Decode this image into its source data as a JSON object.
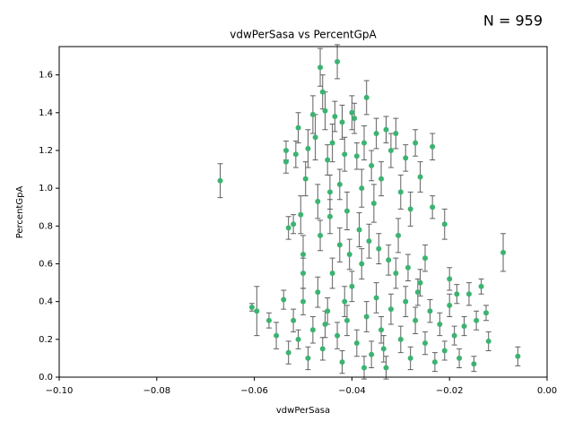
{
  "chart_data": {
    "type": "scatter",
    "title": "vdwPerSasa vs PercentGpA",
    "annotation": "N = 959",
    "x_label": "vdwPerSasa",
    "y_label": "PercentGpA",
    "color": "#3cb371",
    "error_color": "#606060",
    "xlim": [
      -0.1,
      0
    ],
    "ylim": [
      0,
      1.75
    ],
    "xticks": [
      {
        "value": -0.1,
        "label": "−0.10"
      },
      {
        "value": -0.08,
        "label": "−0.08"
      },
      {
        "value": -0.06,
        "label": "−0.06"
      },
      {
        "value": -0.04,
        "label": "−0.04"
      },
      {
        "value": -0.02,
        "label": "−0.02"
      },
      {
        "value": 0,
        "label": "0.00"
      }
    ],
    "yticks": [
      {
        "value": 0,
        "label": "0.0"
      },
      0.2,
      0.4,
      0.6,
      0.8,
      {
        "value": 1,
        "label": "1.0"
      },
      1.2,
      1.4,
      1.6
    ],
    "x": [
      -0.067,
      -0.0605,
      -0.0595,
      -0.057,
      -0.0555,
      -0.054,
      -0.0535,
      -0.0535,
      -0.053,
      -0.052,
      -0.0515,
      -0.051,
      -0.0505,
      -0.05,
      -0.05,
      -0.0495,
      -0.049,
      -0.048,
      -0.0475,
      -0.047,
      -0.0465,
      -0.046,
      -0.0455,
      -0.045,
      -0.0445,
      -0.044,
      -0.0435,
      -0.043,
      -0.0425,
      -0.042,
      -0.0415,
      -0.041,
      -0.04,
      -0.0395,
      -0.039,
      -0.038,
      -0.0375,
      -0.037,
      -0.036,
      -0.0355,
      -0.035,
      -0.034,
      -0.033,
      -0.032,
      -0.031,
      -0.03,
      -0.029,
      -0.028,
      -0.027,
      -0.026,
      -0.025,
      -0.0235,
      -0.0235,
      -0.021,
      -0.02,
      -0.0185,
      -0.017,
      -0.016,
      -0.015,
      -0.0145,
      -0.0135,
      -0.0125,
      -0.012,
      -0.009,
      -0.006,
      -0.053,
      -0.052,
      -0.051,
      -0.05,
      -0.049,
      -0.048,
      -0.047,
      -0.046,
      -0.045,
      -0.044,
      -0.043,
      -0.042,
      -0.041,
      -0.04,
      -0.039,
      -0.038,
      -0.037,
      -0.036,
      -0.035,
      -0.034,
      -0.033,
      -0.032,
      -0.031,
      -0.03,
      -0.029,
      -0.028,
      -0.027,
      -0.026,
      -0.025,
      -0.024,
      -0.023,
      -0.022,
      -0.021,
      -0.02,
      -0.019,
      -0.018,
      -0.0465,
      -0.0445,
      -0.0425,
      -0.0405,
      -0.0385,
      -0.0365,
      -0.0345,
      -0.0325,
      -0.0305,
      -0.0285,
      -0.0265,
      -0.0335,
      -0.0375,
      -0.0415,
      -0.0455
    ],
    "values": [
      1.04,
      0.37,
      0.35,
      0.3,
      0.22,
      0.41,
      1.14,
      1.2,
      0.79,
      0.81,
      1.18,
      1.32,
      0.86,
      0.65,
      0.55,
      1.05,
      1.21,
      1.39,
      1.27,
      0.93,
      1.64,
      1.51,
      1.41,
      1.15,
      0.98,
      1.24,
      1.38,
      1.67,
      1.02,
      1.35,
      1.18,
      0.88,
      1.4,
      1.37,
      1.17,
      1.0,
      1.24,
      1.48,
      1.12,
      0.92,
      1.29,
      1.05,
      1.31,
      1.2,
      1.29,
      0.98,
      1.16,
      0.89,
      1.24,
      1.06,
      0.63,
      1.22,
      0.9,
      0.81,
      0.52,
      0.44,
      0.27,
      0.44,
      0.07,
      0.3,
      0.48,
      0.34,
      0.19,
      0.66,
      0.11,
      0.13,
      0.3,
      0.2,
      0.4,
      0.1,
      0.25,
      0.45,
      0.15,
      0.35,
      0.55,
      0.22,
      0.08,
      0.3,
      0.48,
      0.18,
      0.6,
      0.32,
      0.12,
      0.42,
      0.25,
      0.05,
      0.36,
      0.55,
      0.2,
      0.4,
      0.1,
      0.3,
      0.5,
      0.18,
      0.35,
      0.08,
      0.28,
      0.14,
      0.38,
      0.22,
      0.1,
      0.75,
      0.85,
      0.7,
      0.65,
      0.78,
      0.72,
      0.68,
      0.62,
      0.75,
      0.58,
      0.45,
      0.15,
      0.05,
      0.4,
      0.28
    ],
    "errors": [
      0.09,
      0.02,
      0.13,
      0.04,
      0.07,
      0.05,
      0.06,
      0.05,
      0.06,
      0.05,
      0.07,
      0.08,
      0.1,
      0.1,
      0.08,
      0.09,
      0.1,
      0.1,
      0.12,
      0.09,
      0.1,
      0.09,
      0.1,
      0.08,
      0.09,
      0.1,
      0.08,
      0.09,
      0.08,
      0.09,
      0.09,
      0.1,
      0.09,
      0.08,
      0.07,
      0.1,
      0.09,
      0.09,
      0.08,
      0.1,
      0.08,
      0.09,
      0.07,
      0.09,
      0.08,
      0.09,
      0.07,
      0.09,
      0.07,
      0.08,
      0.07,
      0.07,
      0.06,
      0.08,
      0.06,
      0.05,
      0.05,
      0.06,
      0.04,
      0.05,
      0.04,
      0.04,
      0.05,
      0.1,
      0.05,
      0.06,
      0.06,
      0.05,
      0.07,
      0.06,
      0.07,
      0.08,
      0.06,
      0.07,
      0.08,
      0.07,
      0.06,
      0.08,
      0.08,
      0.07,
      0.08,
      0.08,
      0.07,
      0.08,
      0.07,
      0.06,
      0.08,
      0.08,
      0.07,
      0.08,
      0.06,
      0.07,
      0.07,
      0.06,
      0.06,
      0.05,
      0.06,
      0.05,
      0.06,
      0.05,
      0.05,
      0.08,
      0.09,
      0.09,
      0.08,
      0.09,
      0.09,
      0.08,
      0.08,
      0.09,
      0.07,
      0.07,
      0.07,
      0.06,
      0.08,
      0.07
    ]
  }
}
